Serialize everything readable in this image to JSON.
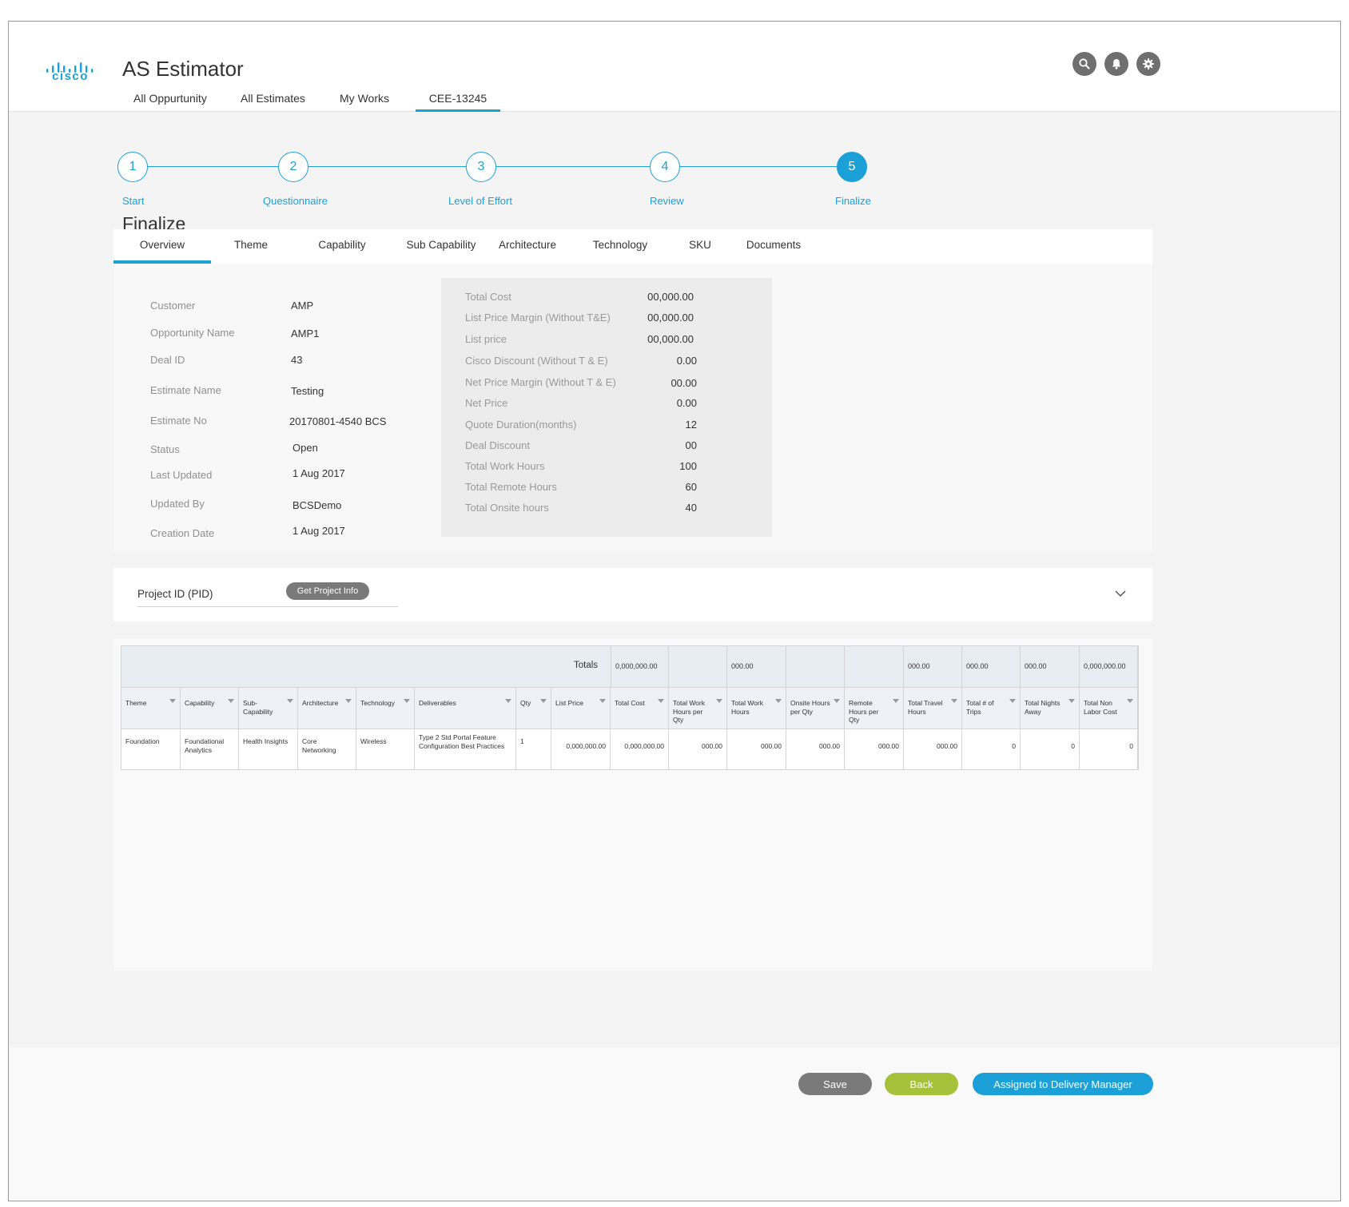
{
  "header": {
    "logo_text": "cisco",
    "app_title": "AS Estimator",
    "nav": [
      "All Oppurtunity",
      "All Estimates",
      "My Works",
      "CEE-13245"
    ],
    "icons": [
      "search-icon",
      "bell-icon",
      "gear-icon"
    ]
  },
  "stepper": {
    "steps": [
      {
        "number": "1",
        "label": "Start"
      },
      {
        "number": "2",
        "label": "Questionnaire"
      },
      {
        "number": "3",
        "label": "Level of Effort"
      },
      {
        "number": "4",
        "label": "Review"
      },
      {
        "number": "5",
        "label": "Finalize"
      }
    ],
    "active_step": "5"
  },
  "page_title": "Finalize",
  "tabs": [
    "Overview",
    "Theme",
    "Capability",
    "Sub Capability",
    "Architecture",
    "Technology",
    "SKU",
    "Documents"
  ],
  "overview": {
    "fields": [
      {
        "label": "Customer",
        "value": "AMP"
      },
      {
        "label": "Opportunity Name",
        "value": "AMP1"
      },
      {
        "label": "Deal ID",
        "value": "43"
      },
      {
        "label": "Estimate Name",
        "value": "Testing"
      },
      {
        "label": "Estimate No",
        "value": "20170801-4540 BCS"
      },
      {
        "label": "Status",
        "value": "Open"
      },
      {
        "label": "Last Updated",
        "value": "1 Aug 2017"
      },
      {
        "label": "Updated By",
        "value": "BCSDemo"
      },
      {
        "label": "Creation Date",
        "value": "1 Aug 2017"
      }
    ],
    "summary": [
      {
        "label": "Total Cost",
        "value": "00,000.00"
      },
      {
        "label": "List Price Margin (Without T&E)",
        "value": "00,000.00"
      },
      {
        "label": "List price",
        "value": "00,000.00"
      },
      {
        "label": "Cisco Discount (Without T & E)",
        "value": "0.00"
      },
      {
        "label": "Net Price Margin (Without T & E)",
        "value": "00.00"
      },
      {
        "label": "Net Price",
        "value": "0.00"
      },
      {
        "label": "Quote Duration(months)",
        "value": "12"
      },
      {
        "label": "Deal Discount",
        "value": "00"
      },
      {
        "label": "Total Work Hours",
        "value": "100"
      },
      {
        "label": "Total Remote Hours",
        "value": "60"
      },
      {
        "label": "Total Onsite hours",
        "value": "40"
      }
    ]
  },
  "pid": {
    "label": "Project ID (PID)",
    "button": "Get Project Info"
  },
  "table": {
    "totals_label": "Totals",
    "totals": [
      "",
      "",
      "",
      "",
      "",
      "",
      "",
      "",
      "",
      "0,000,000.00",
      "",
      "000.00",
      "",
      "",
      "000.00",
      "000.00",
      "000.00",
      "0,000,000.00"
    ],
    "columns": [
      "Theme",
      "Capability",
      "Sub-Capability",
      "Architecture",
      "Technology",
      "Deliverables",
      "Qty",
      "List Price",
      "Total Cost",
      "Total Work Hours per Qty",
      "Total Work Hours",
      "Onsite Hours per Qty",
      "Remote Hours per Qty",
      "Total Travel Hours",
      "Total # of Trips",
      "Total Nights Away",
      "Total Non Labor Cost"
    ],
    "rows": [
      [
        "Foundation",
        "Foundational Analytics",
        "Health Insights",
        "Core Networking",
        "Wireless",
        "Type 2 Std Portal Feature Configuration Best Practices",
        "1",
        "0,000,000.00",
        "0,000,000.00",
        "000.00",
        "000.00",
        "000.00",
        "000.00",
        "000.00",
        "0",
        "0",
        "0"
      ]
    ]
  },
  "footer": {
    "save": "Save",
    "back": "Back",
    "assign": "Assigned to Delivery Manager"
  },
  "colors": {
    "accent": "#1ba0d7",
    "back_button": "#a5c23a",
    "save_button": "#7a7a7a"
  }
}
